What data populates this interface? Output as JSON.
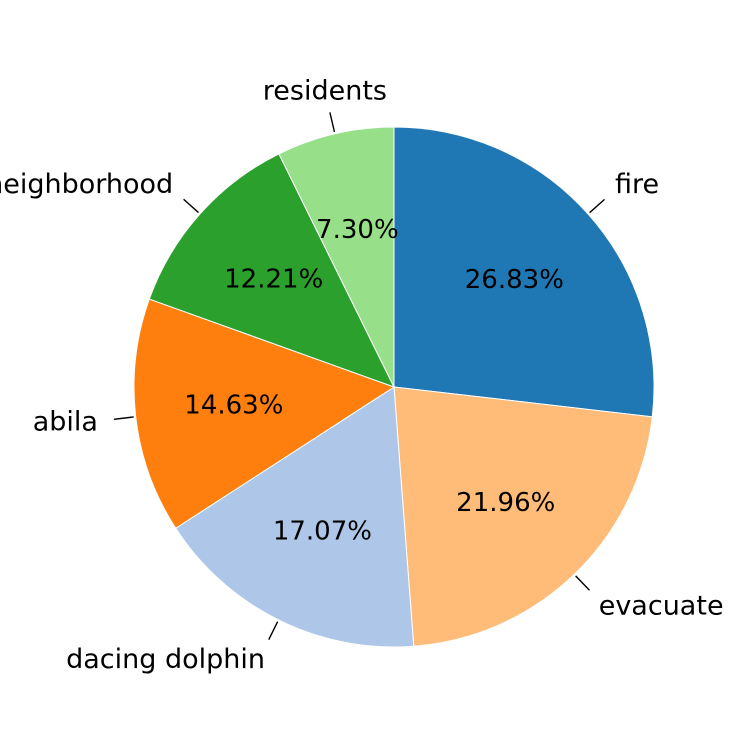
{
  "chart_data": {
    "type": "pie",
    "title": "",
    "start_angle_deg": 0,
    "direction": "clockwise",
    "slices": [
      {
        "label": "fire",
        "value": 26.83,
        "value_label": "26.83%",
        "color": "#1f77b4"
      },
      {
        "label": "evacuate",
        "value": 21.96,
        "value_label": "21.96%",
        "color": "#ffbb78"
      },
      {
        "label": "dacing dolphin",
        "value": 17.07,
        "value_label": "17.07%",
        "color": "#aec7e8"
      },
      {
        "label": "abila",
        "value": 14.63,
        "value_label": "14.63%",
        "color": "#ff7f0e"
      },
      {
        "label": "neighborhood",
        "value": 12.21,
        "value_label": "12.21%",
        "color": "#2ca02c"
      },
      {
        "label": "residents",
        "value": 7.3,
        "value_label": "7.30%",
        "color": "#98df8a"
      }
    ]
  }
}
